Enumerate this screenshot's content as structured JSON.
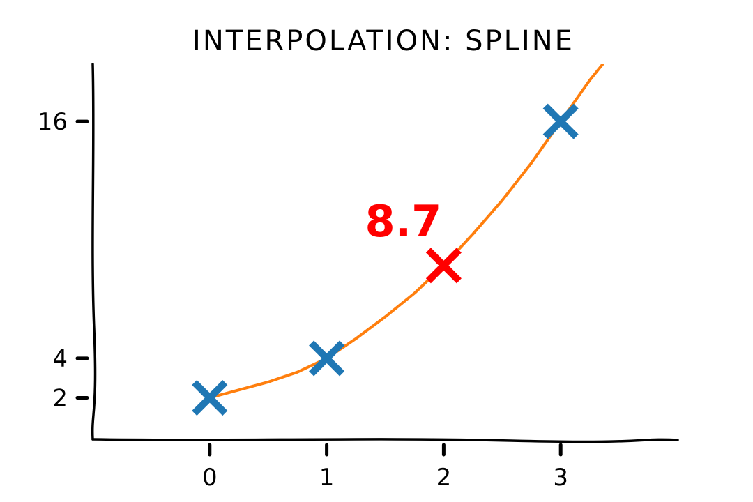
{
  "chart_data": {
    "type": "line",
    "title": "INTERPOLATION: SPLINE",
    "xlabel": "",
    "ylabel": "",
    "xlim": [
      -1,
      4
    ],
    "ylim": [
      -0.1,
      18.9
    ],
    "x_ticks": [
      0,
      1,
      2,
      3
    ],
    "x_tick_labels": [
      "0",
      "1",
      "2",
      "3"
    ],
    "y_ticks": [
      2,
      4,
      16
    ],
    "y_tick_labels": [
      "2",
      "4",
      "16"
    ],
    "grid": false,
    "series": [
      {
        "kind": "line",
        "color": "#ff7f0e",
        "x": [
          0,
          0.25,
          0.5,
          0.75,
          1,
          1.25,
          1.5,
          1.75,
          2,
          2.25,
          2.5,
          2.75,
          3,
          3.25,
          3.4
        ],
        "y": [
          2,
          2.4,
          2.8,
          3.3,
          4,
          5.0,
          6.1,
          7.3,
          8.7,
          10.3,
          12.0,
          13.9,
          16,
          18.1,
          19.2
        ]
      },
      {
        "kind": "markers",
        "marker": "x",
        "color": "#1f77b4",
        "x": [
          0,
          1,
          3
        ],
        "y": [
          2,
          4,
          16
        ]
      },
      {
        "kind": "markers",
        "marker": "x",
        "color": "#ff0000",
        "x": [
          2
        ],
        "y": [
          8.7
        ]
      }
    ],
    "annotations": [
      {
        "text": "8.7",
        "x": 2,
        "y": 8.7,
        "color": "#ff0000"
      }
    ]
  }
}
